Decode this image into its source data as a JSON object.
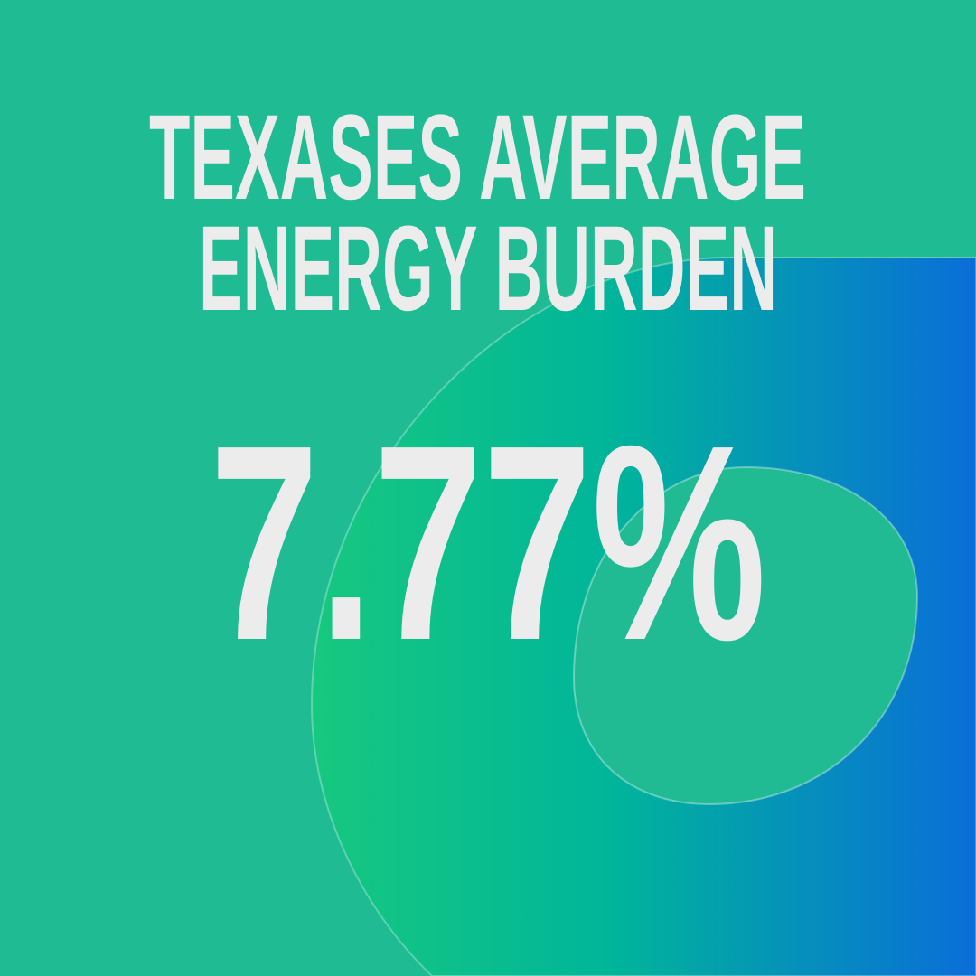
{
  "title": {
    "lines": [
      "TEXASES AVERAGE",
      "ENERGY BURDEN"
    ]
  },
  "stat": {
    "value": "7.77%"
  }
}
